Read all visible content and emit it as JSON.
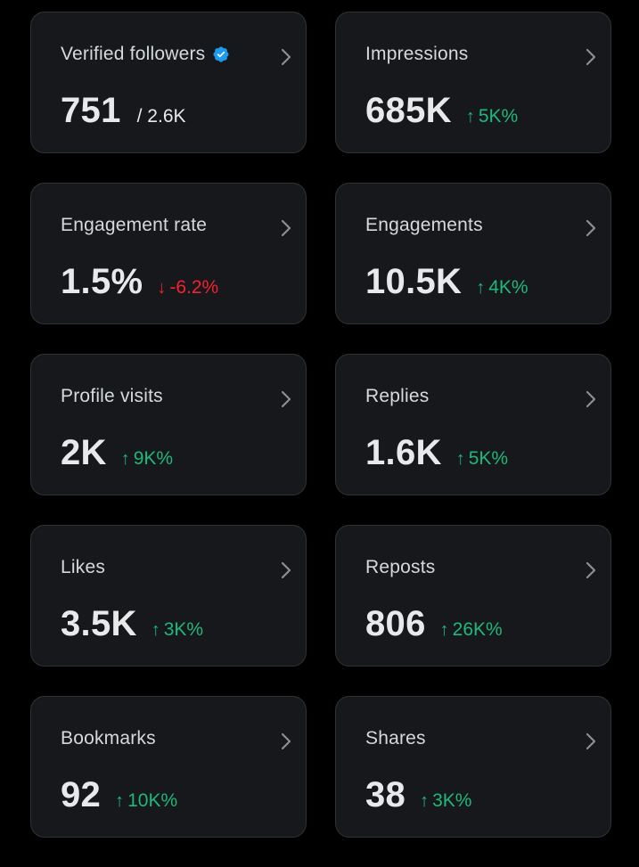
{
  "theme": {
    "background": "#000000",
    "card_background": "#16181c",
    "card_border": "#2f3336",
    "up_color": "#1fb87a",
    "down_color": "#f4212e",
    "verified_color": "#1d9bf0"
  },
  "cards": [
    {
      "title": "Verified followers",
      "value": "751",
      "total": "/ 2.6K",
      "verified_icon": "verified-badge-icon"
    },
    {
      "title": "Impressions",
      "value": "685K",
      "change": "5K%",
      "direction": "up"
    },
    {
      "title": "Engagement rate",
      "value": "1.5%",
      "change": "-6.2%",
      "direction": "down"
    },
    {
      "title": "Engagements",
      "value": "10.5K",
      "change": "4K%",
      "direction": "up"
    },
    {
      "title": "Profile visits",
      "value": "2K",
      "change": "9K%",
      "direction": "up"
    },
    {
      "title": "Replies",
      "value": "1.6K",
      "change": "5K%",
      "direction": "up"
    },
    {
      "title": "Likes",
      "value": "3.5K",
      "change": "3K%",
      "direction": "up"
    },
    {
      "title": "Reposts",
      "value": "806",
      "change": "26K%",
      "direction": "up"
    },
    {
      "title": "Bookmarks",
      "value": "92",
      "change": "10K%",
      "direction": "up"
    },
    {
      "title": "Shares",
      "value": "38",
      "change": "3K%",
      "direction": "up"
    }
  ],
  "icons": {
    "arrow_up": "↑",
    "arrow_down": "↓",
    "chevron": "chevron-right-icon"
  }
}
